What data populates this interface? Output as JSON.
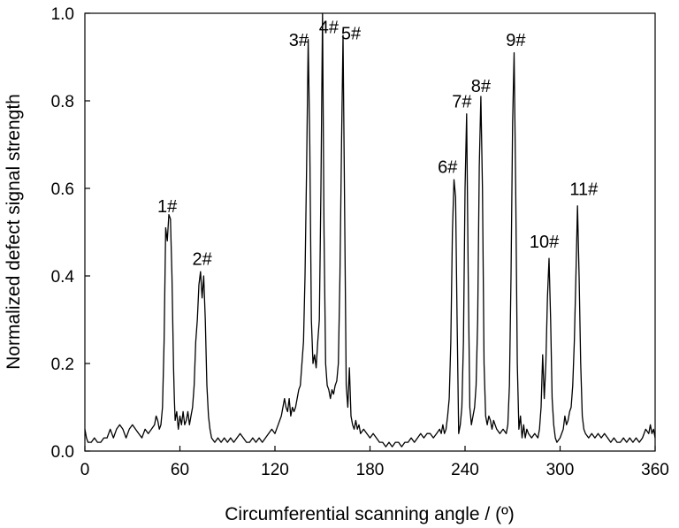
{
  "chart_data": {
    "type": "line",
    "xlabel": "Circumferential scanning angle / (º)",
    "ylabel": "Normalized defect signal strength",
    "xlim": [
      0,
      360
    ],
    "ylim": [
      0,
      1.0
    ],
    "x_ticks": [
      0,
      60,
      120,
      180,
      240,
      300,
      360
    ],
    "y_ticks": [
      "0.0",
      "0.2",
      "0.4",
      "0.6",
      "0.8",
      "1.0"
    ],
    "grid": false,
    "series": [
      {
        "points": [
          [
            0,
            0.05
          ],
          [
            1,
            0.03
          ],
          [
            2,
            0.02
          ],
          [
            4,
            0.02
          ],
          [
            6,
            0.03
          ],
          [
            8,
            0.02
          ],
          [
            10,
            0.02
          ],
          [
            12,
            0.03
          ],
          [
            14,
            0.03
          ],
          [
            16,
            0.05
          ],
          [
            17,
            0.04
          ],
          [
            18,
            0.03
          ],
          [
            20,
            0.05
          ],
          [
            22,
            0.06
          ],
          [
            24,
            0.05
          ],
          [
            26,
            0.03
          ],
          [
            28,
            0.05
          ],
          [
            30,
            0.06
          ],
          [
            32,
            0.05
          ],
          [
            34,
            0.04
          ],
          [
            36,
            0.03
          ],
          [
            38,
            0.05
          ],
          [
            40,
            0.04
          ],
          [
            42,
            0.05
          ],
          [
            44,
            0.06
          ],
          [
            45,
            0.08
          ],
          [
            46,
            0.07
          ],
          [
            47,
            0.05
          ],
          [
            48,
            0.06
          ],
          [
            49,
            0.1
          ],
          [
            50,
            0.25
          ],
          [
            51,
            0.51
          ],
          [
            52,
            0.48
          ],
          [
            53,
            0.54
          ],
          [
            54,
            0.53
          ],
          [
            55,
            0.4
          ],
          [
            56,
            0.19
          ],
          [
            56.5,
            0.12
          ],
          [
            57,
            0.07
          ],
          [
            58,
            0.09
          ],
          [
            59,
            0.05
          ],
          [
            60,
            0.08
          ],
          [
            61,
            0.06
          ],
          [
            62,
            0.09
          ],
          [
            63,
            0.06
          ],
          [
            64,
            0.07
          ],
          [
            65,
            0.09
          ],
          [
            66,
            0.06
          ],
          [
            67,
            0.08
          ],
          [
            68,
            0.1
          ],
          [
            69,
            0.15
          ],
          [
            70,
            0.25
          ],
          [
            71,
            0.3
          ],
          [
            72,
            0.38
          ],
          [
            73,
            0.41
          ],
          [
            74,
            0.35
          ],
          [
            75,
            0.4
          ],
          [
            76,
            0.3
          ],
          [
            77,
            0.15
          ],
          [
            78,
            0.08
          ],
          [
            79,
            0.05
          ],
          [
            80,
            0.03
          ],
          [
            82,
            0.02
          ],
          [
            84,
            0.03
          ],
          [
            86,
            0.02
          ],
          [
            88,
            0.03
          ],
          [
            90,
            0.02
          ],
          [
            92,
            0.03
          ],
          [
            94,
            0.02
          ],
          [
            96,
            0.03
          ],
          [
            98,
            0.04
          ],
          [
            100,
            0.03
          ],
          [
            102,
            0.02
          ],
          [
            104,
            0.02
          ],
          [
            106,
            0.03
          ],
          [
            108,
            0.02
          ],
          [
            110,
            0.03
          ],
          [
            112,
            0.02
          ],
          [
            114,
            0.03
          ],
          [
            116,
            0.04
          ],
          [
            118,
            0.05
          ],
          [
            120,
            0.04
          ],
          [
            122,
            0.06
          ],
          [
            124,
            0.08
          ],
          [
            126,
            0.12
          ],
          [
            127,
            0.1
          ],
          [
            128,
            0.09
          ],
          [
            129,
            0.12
          ],
          [
            130,
            0.08
          ],
          [
            131,
            0.1
          ],
          [
            132,
            0.09
          ],
          [
            133,
            0.1
          ],
          [
            134,
            0.12
          ],
          [
            135,
            0.14
          ],
          [
            136,
            0.15
          ],
          [
            137,
            0.2
          ],
          [
            138,
            0.25
          ],
          [
            139,
            0.4
          ],
          [
            140,
            0.65
          ],
          [
            141,
            0.94
          ],
          [
            142,
            0.7
          ],
          [
            143,
            0.3
          ],
          [
            144,
            0.2
          ],
          [
            145,
            0.22
          ],
          [
            146,
            0.19
          ],
          [
            147,
            0.25
          ],
          [
            148,
            0.3
          ],
          [
            149,
            0.6
          ],
          [
            150,
            1.0
          ],
          [
            151,
            0.5
          ],
          [
            152,
            0.2
          ],
          [
            153,
            0.15
          ],
          [
            154,
            0.14
          ],
          [
            155,
            0.12
          ],
          [
            156,
            0.14
          ],
          [
            157,
            0.13
          ],
          [
            158,
            0.15
          ],
          [
            159,
            0.16
          ],
          [
            160,
            0.2
          ],
          [
            161,
            0.4
          ],
          [
            162,
            0.7
          ],
          [
            163,
            0.95
          ],
          [
            164,
            0.55
          ],
          [
            165,
            0.15
          ],
          [
            166,
            0.1
          ],
          [
            167,
            0.19
          ],
          [
            168,
            0.08
          ],
          [
            169,
            0.06
          ],
          [
            170,
            0.05
          ],
          [
            171,
            0.07
          ],
          [
            172,
            0.05
          ],
          [
            173,
            0.06
          ],
          [
            174,
            0.04
          ],
          [
            176,
            0.05
          ],
          [
            178,
            0.04
          ],
          [
            180,
            0.03
          ],
          [
            182,
            0.04
          ],
          [
            184,
            0.03
          ],
          [
            186,
            0.02
          ],
          [
            188,
            0.02
          ],
          [
            190,
            0.01
          ],
          [
            192,
            0.02
          ],
          [
            194,
            0.01
          ],
          [
            196,
            0.02
          ],
          [
            198,
            0.02
          ],
          [
            200,
            0.01
          ],
          [
            202,
            0.02
          ],
          [
            204,
            0.02
          ],
          [
            206,
            0.03
          ],
          [
            208,
            0.02
          ],
          [
            210,
            0.03
          ],
          [
            212,
            0.04
          ],
          [
            214,
            0.03
          ],
          [
            216,
            0.04
          ],
          [
            218,
            0.04
          ],
          [
            220,
            0.03
          ],
          [
            222,
            0.04
          ],
          [
            224,
            0.05
          ],
          [
            225,
            0.04
          ],
          [
            226,
            0.06
          ],
          [
            227,
            0.04
          ],
          [
            228,
            0.05
          ],
          [
            229,
            0.08
          ],
          [
            230,
            0.12
          ],
          [
            231,
            0.25
          ],
          [
            232,
            0.5
          ],
          [
            233,
            0.62
          ],
          [
            234,
            0.58
          ],
          [
            235,
            0.3
          ],
          [
            236,
            0.04
          ],
          [
            237,
            0.06
          ],
          [
            238,
            0.1
          ],
          [
            239,
            0.25
          ],
          [
            240,
            0.6
          ],
          [
            241,
            0.77
          ],
          [
            242,
            0.4
          ],
          [
            243,
            0.1
          ],
          [
            244,
            0.06
          ],
          [
            245,
            0.08
          ],
          [
            246,
            0.1
          ],
          [
            247,
            0.15
          ],
          [
            248,
            0.3
          ],
          [
            249,
            0.65
          ],
          [
            250,
            0.81
          ],
          [
            251,
            0.6
          ],
          [
            252,
            0.2
          ],
          [
            253,
            0.08
          ],
          [
            254,
            0.06
          ],
          [
            255,
            0.08
          ],
          [
            256,
            0.07
          ],
          [
            257,
            0.05
          ],
          [
            258,
            0.07
          ],
          [
            259,
            0.06
          ],
          [
            260,
            0.05
          ],
          [
            262,
            0.04
          ],
          [
            264,
            0.05
          ],
          [
            266,
            0.04
          ],
          [
            267,
            0.06
          ],
          [
            268,
            0.15
          ],
          [
            269,
            0.4
          ],
          [
            270,
            0.75
          ],
          [
            271,
            0.91
          ],
          [
            272,
            0.6
          ],
          [
            273,
            0.2
          ],
          [
            274,
            0.05
          ],
          [
            275,
            0.08
          ],
          [
            276,
            0.03
          ],
          [
            277,
            0.06
          ],
          [
            278,
            0.03
          ],
          [
            279,
            0.05
          ],
          [
            280,
            0.04
          ],
          [
            282,
            0.03
          ],
          [
            284,
            0.04
          ],
          [
            286,
            0.03
          ],
          [
            287,
            0.05
          ],
          [
            288,
            0.1
          ],
          [
            289,
            0.22
          ],
          [
            290,
            0.12
          ],
          [
            291,
            0.2
          ],
          [
            292,
            0.35
          ],
          [
            293,
            0.44
          ],
          [
            294,
            0.3
          ],
          [
            295,
            0.12
          ],
          [
            296,
            0.06
          ],
          [
            297,
            0.03
          ],
          [
            298,
            0.02
          ],
          [
            300,
            0.03
          ],
          [
            302,
            0.05
          ],
          [
            303,
            0.08
          ],
          [
            304,
            0.06
          ],
          [
            305,
            0.07
          ],
          [
            306,
            0.09
          ],
          [
            307,
            0.1
          ],
          [
            308,
            0.15
          ],
          [
            309,
            0.25
          ],
          [
            310,
            0.4
          ],
          [
            311,
            0.56
          ],
          [
            312,
            0.4
          ],
          [
            313,
            0.2
          ],
          [
            314,
            0.08
          ],
          [
            315,
            0.05
          ],
          [
            316,
            0.04
          ],
          [
            318,
            0.03
          ],
          [
            320,
            0.04
          ],
          [
            322,
            0.03
          ],
          [
            324,
            0.04
          ],
          [
            326,
            0.03
          ],
          [
            328,
            0.04
          ],
          [
            330,
            0.03
          ],
          [
            332,
            0.02
          ],
          [
            334,
            0.03
          ],
          [
            336,
            0.02
          ],
          [
            338,
            0.02
          ],
          [
            340,
            0.03
          ],
          [
            342,
            0.02
          ],
          [
            344,
            0.03
          ],
          [
            346,
            0.02
          ],
          [
            348,
            0.03
          ],
          [
            350,
            0.02
          ],
          [
            352,
            0.03
          ],
          [
            354,
            0.05
          ],
          [
            356,
            0.04
          ],
          [
            357,
            0.06
          ],
          [
            358,
            0.04
          ],
          [
            359,
            0.05
          ],
          [
            360,
            0.03
          ]
        ]
      }
    ],
    "annotations": [
      {
        "text": "1#",
        "x": 52,
        "y": 0.545
      },
      {
        "text": "2#",
        "x": 74,
        "y": 0.425
      },
      {
        "text": "3#",
        "x": 135,
        "y": 0.925
      },
      {
        "text": "4#",
        "x": 154,
        "y": 0.955
      },
      {
        "text": "5#",
        "x": 168,
        "y": 0.94
      },
      {
        "text": "6#",
        "x": 229,
        "y": 0.635
      },
      {
        "text": "7#",
        "x": 238,
        "y": 0.785
      },
      {
        "text": "8#",
        "x": 250,
        "y": 0.82
      },
      {
        "text": "9#",
        "x": 272,
        "y": 0.925
      },
      {
        "text": "10#",
        "x": 290,
        "y": 0.465
      },
      {
        "text": "11#",
        "x": 315,
        "y": 0.585
      }
    ]
  }
}
